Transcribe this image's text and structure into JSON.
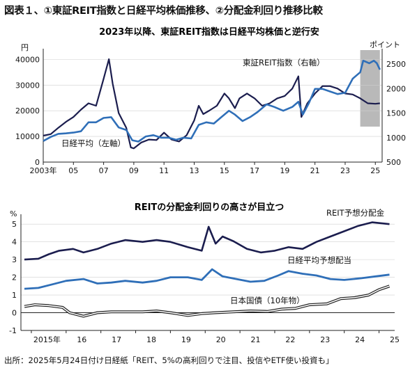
{
  "figure_title": "図表１、①東証REIT指数と日経平均株価推移、②分配金利回り推移比較",
  "source": "出所：2025年5月24日付け日経紙「REIT、5%の高利回りで注目、投信やETF使い投資も」",
  "colors": {
    "navy": "#1b1d4e",
    "blue": "#2f6fb8",
    "highlight": "#b9b9b9"
  },
  "chart_data": [
    {
      "type": "line",
      "title": "2023年以降、東証REIT指数は日経平均株価と逆行安",
      "left_axis": {
        "unit": "円",
        "ylim": [
          0,
          42000
        ],
        "ticks": [
          "0",
          "10000",
          "20000",
          "30000",
          "40000"
        ]
      },
      "right_axis": {
        "unit": "ポイント",
        "ylim": [
          500,
          2700
        ],
        "ticks": [
          "500",
          "1000",
          "1500",
          "2000",
          "2500"
        ]
      },
      "x_ticks": [
        "2003年",
        "05",
        "07",
        "09",
        "11",
        "13",
        "15",
        "17",
        "19",
        "21",
        "23",
        "25"
      ],
      "highlight": {
        "from": 2024.0,
        "to": 2025.3
      },
      "series": [
        {
          "name": "東証REIT指数（右軸）",
          "axis": "right",
          "points": [
            [
              2003.0,
              1040
            ],
            [
              2003.5,
              1070
            ],
            [
              2004.0,
              1200
            ],
            [
              2004.5,
              1320
            ],
            [
              2005.0,
              1420
            ],
            [
              2005.5,
              1570
            ],
            [
              2006.0,
              1700
            ],
            [
              2006.5,
              1650
            ],
            [
              2007.0,
              2200
            ],
            [
              2007.35,
              2600
            ],
            [
              2007.6,
              2100
            ],
            [
              2008.0,
              1500
            ],
            [
              2008.5,
              1200
            ],
            [
              2008.8,
              800
            ],
            [
              2009.0,
              780
            ],
            [
              2009.5,
              900
            ],
            [
              2010.0,
              960
            ],
            [
              2010.5,
              950
            ],
            [
              2011.0,
              1100
            ],
            [
              2011.5,
              960
            ],
            [
              2012.0,
              920
            ],
            [
              2012.5,
              1050
            ],
            [
              2013.0,
              1350
            ],
            [
              2013.3,
              1650
            ],
            [
              2013.6,
              1480
            ],
            [
              2014.0,
              1550
            ],
            [
              2014.5,
              1650
            ],
            [
              2015.0,
              1900
            ],
            [
              2015.3,
              1800
            ],
            [
              2015.7,
              1600
            ],
            [
              2016.0,
              1800
            ],
            [
              2016.5,
              1900
            ],
            [
              2017.0,
              1800
            ],
            [
              2017.5,
              1650
            ],
            [
              2018.0,
              1700
            ],
            [
              2018.5,
              1800
            ],
            [
              2019.0,
              1850
            ],
            [
              2019.5,
              2000
            ],
            [
              2019.9,
              2250
            ],
            [
              2020.1,
              1420
            ],
            [
              2020.5,
              1700
            ],
            [
              2021.0,
              1900
            ],
            [
              2021.5,
              2050
            ],
            [
              2022.0,
              2050
            ],
            [
              2022.5,
              2000
            ],
            [
              2023.0,
              1900
            ],
            [
              2023.5,
              1880
            ],
            [
              2024.0,
              1800
            ],
            [
              2024.5,
              1700
            ],
            [
              2025.0,
              1690
            ],
            [
              2025.3,
              1700
            ]
          ]
        },
        {
          "name": "日経平均（左軸）",
          "axis": "left",
          "points": [
            [
              2003.0,
              8200
            ],
            [
              2003.5,
              9800
            ],
            [
              2004.0,
              11000
            ],
            [
              2004.5,
              11200
            ],
            [
              2005.0,
              11500
            ],
            [
              2005.5,
              12000
            ],
            [
              2006.0,
              15500
            ],
            [
              2006.5,
              15500
            ],
            [
              2007.0,
              17200
            ],
            [
              2007.5,
              17500
            ],
            [
              2008.0,
              13500
            ],
            [
              2008.5,
              12500
            ],
            [
              2008.9,
              8500
            ],
            [
              2009.3,
              8000
            ],
            [
              2009.8,
              10000
            ],
            [
              2010.3,
              10500
            ],
            [
              2010.8,
              9500
            ],
            [
              2011.3,
              9500
            ],
            [
              2011.8,
              8700
            ],
            [
              2012.3,
              9500
            ],
            [
              2012.8,
              9200
            ],
            [
              2013.3,
              14500
            ],
            [
              2013.8,
              15500
            ],
            [
              2014.3,
              15000
            ],
            [
              2014.8,
              17500
            ],
            [
              2015.3,
              20000
            ],
            [
              2015.7,
              18500
            ],
            [
              2016.2,
              16000
            ],
            [
              2016.7,
              17500
            ],
            [
              2017.2,
              19500
            ],
            [
              2017.8,
              22500
            ],
            [
              2018.3,
              21500
            ],
            [
              2018.9,
              20000
            ],
            [
              2019.5,
              21500
            ],
            [
              2019.9,
              23500
            ],
            [
              2020.2,
              18500
            ],
            [
              2020.6,
              23000
            ],
            [
              2021.0,
              28500
            ],
            [
              2021.5,
              28500
            ],
            [
              2022.0,
              27500
            ],
            [
              2022.5,
              26500
            ],
            [
              2023.0,
              27000
            ],
            [
              2023.5,
              32500
            ],
            [
              2024.0,
              35000
            ],
            [
              2024.2,
              39500
            ],
            [
              2024.6,
              38500
            ],
            [
              2024.9,
              39500
            ],
            [
              2025.1,
              38500
            ],
            [
              2025.3,
              36000
            ]
          ]
        }
      ]
    },
    {
      "type": "line",
      "title": "REITの分配金利回りの高さが目立つ",
      "y_unit": "%",
      "ylim": [
        -1,
        5.4
      ],
      "y_ticks": [
        "-1",
        "0",
        "1",
        "2",
        "3",
        "4",
        "5"
      ],
      "x_ticks": [
        "2015年",
        "16",
        "17",
        "18",
        "19",
        "20",
        "21",
        "22",
        "23",
        "24",
        "25"
      ],
      "series": [
        {
          "name": "REIT予想分配金",
          "points": [
            [
              2014.8,
              3.0
            ],
            [
              2015.2,
              3.05
            ],
            [
              2015.5,
              3.3
            ],
            [
              2015.8,
              3.5
            ],
            [
              2016.2,
              3.6
            ],
            [
              2016.5,
              3.4
            ],
            [
              2016.9,
              3.6
            ],
            [
              2017.3,
              3.9
            ],
            [
              2017.7,
              4.1
            ],
            [
              2018.2,
              4.0
            ],
            [
              2018.6,
              4.1
            ],
            [
              2019.0,
              4.0
            ],
            [
              2019.5,
              3.7
            ],
            [
              2019.9,
              3.5
            ],
            [
              2020.1,
              4.85
            ],
            [
              2020.3,
              3.9
            ],
            [
              2020.5,
              4.3
            ],
            [
              2020.8,
              4.05
            ],
            [
              2021.2,
              3.6
            ],
            [
              2021.6,
              3.4
            ],
            [
              2022.0,
              3.5
            ],
            [
              2022.4,
              3.7
            ],
            [
              2022.8,
              3.6
            ],
            [
              2023.2,
              4.0
            ],
            [
              2023.6,
              4.3
            ],
            [
              2024.0,
              4.6
            ],
            [
              2024.4,
              4.9
            ],
            [
              2024.8,
              5.1
            ],
            [
              2025.3,
              5.0
            ]
          ]
        },
        {
          "name": "日経平均予想配当",
          "points": [
            [
              2014.8,
              1.35
            ],
            [
              2015.2,
              1.4
            ],
            [
              2015.6,
              1.6
            ],
            [
              2016.0,
              1.8
            ],
            [
              2016.5,
              1.9
            ],
            [
              2016.9,
              1.65
            ],
            [
              2017.3,
              1.7
            ],
            [
              2017.7,
              1.8
            ],
            [
              2018.2,
              1.7
            ],
            [
              2018.6,
              1.8
            ],
            [
              2019.0,
              2.0
            ],
            [
              2019.5,
              2.0
            ],
            [
              2019.9,
              1.85
            ],
            [
              2020.2,
              2.45
            ],
            [
              2020.5,
              2.05
            ],
            [
              2020.9,
              1.9
            ],
            [
              2021.3,
              1.75
            ],
            [
              2021.7,
              1.8
            ],
            [
              2022.1,
              2.1
            ],
            [
              2022.4,
              2.35
            ],
            [
              2022.8,
              2.2
            ],
            [
              2023.2,
              2.1
            ],
            [
              2023.6,
              1.9
            ],
            [
              2024.0,
              1.85
            ],
            [
              2024.5,
              1.95
            ],
            [
              2024.9,
              2.05
            ],
            [
              2025.3,
              2.15
            ]
          ]
        },
        {
          "name": "日本国債（10年物）",
          "points": [
            [
              2014.8,
              0.35
            ],
            [
              2015.1,
              0.45
            ],
            [
              2015.5,
              0.4
            ],
            [
              2015.9,
              0.3
            ],
            [
              2016.1,
              0.0
            ],
            [
              2016.5,
              -0.2
            ],
            [
              2016.9,
              0.0
            ],
            [
              2017.3,
              0.05
            ],
            [
              2017.7,
              0.05
            ],
            [
              2018.2,
              0.05
            ],
            [
              2018.6,
              0.1
            ],
            [
              2019.0,
              0.0
            ],
            [
              2019.5,
              -0.15
            ],
            [
              2019.9,
              -0.05
            ],
            [
              2020.3,
              0.0
            ],
            [
              2020.8,
              0.05
            ],
            [
              2021.3,
              0.1
            ],
            [
              2021.8,
              0.07
            ],
            [
              2022.2,
              0.2
            ],
            [
              2022.6,
              0.25
            ],
            [
              2023.0,
              0.45
            ],
            [
              2023.5,
              0.5
            ],
            [
              2023.9,
              0.8
            ],
            [
              2024.3,
              0.85
            ],
            [
              2024.7,
              1.0
            ],
            [
              2025.0,
              1.3
            ],
            [
              2025.3,
              1.5
            ]
          ]
        }
      ]
    }
  ]
}
